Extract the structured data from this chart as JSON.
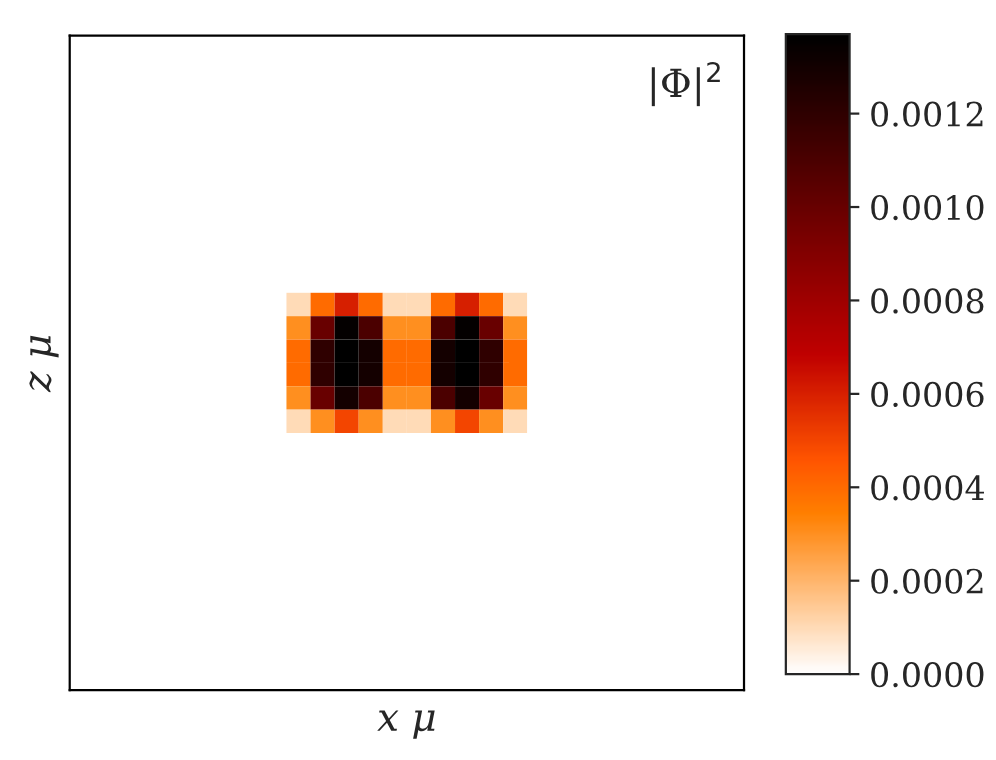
{
  "chart_data": {
    "type": "heatmap",
    "xlabel": "x μ",
    "ylabel": "z μ",
    "clim": [
      0,
      0.00137
    ],
    "cticks": [
      {
        "value": 0,
        "label": "0.0000"
      },
      {
        "value": 0.0002,
        "label": "0.0002"
      },
      {
        "value": 0.0004,
        "label": "0.0004"
      },
      {
        "value": 0.0006,
        "label": "0.0006"
      },
      {
        "value": 0.0008,
        "label": "0.0008"
      },
      {
        "value": 0.001,
        "label": "0.0010"
      },
      {
        "value": 0.0012,
        "label": "0.0012"
      }
    ],
    "annotations": [
      "|Φ|$^{2}$"
    ],
    "tick_labels": false,
    "categories": [
      null,
      null,
      null,
      null,
      null,
      null,
      null,
      null,
      null,
      null,
      null,
      null,
      null,
      null,
      null,
      null,
      null,
      null,
      null,
      null,
      null,
      null,
      null,
      null,
      null,
      null,
      null,
      null
    ],
    "y_categories": [
      null,
      null,
      null,
      null,
      null,
      null,
      null,
      null,
      null,
      null,
      null,
      null,
      null,
      null,
      null,
      null,
      null,
      null,
      null,
      null,
      null,
      null,
      null,
      null,
      null,
      null,
      null,
      null
    ],
    "cells": [
      [
        0,
        0,
        0,
        0,
        0,
        0,
        0,
        0,
        0,
        0,
        0,
        0,
        0,
        0,
        0,
        0,
        0,
        0,
        0,
        0,
        0,
        0,
        0,
        0,
        0,
        0,
        0,
        0
      ],
      [
        0,
        0,
        0,
        0,
        0,
        0,
        0,
        0,
        0,
        0,
        0,
        0,
        0,
        0,
        0,
        0,
        0,
        0,
        0,
        0,
        0,
        0,
        0,
        0,
        0,
        0,
        0,
        0
      ],
      [
        0,
        0,
        0,
        0,
        0,
        0,
        0,
        0,
        0,
        0,
        0,
        0,
        0,
        0,
        0,
        0,
        0,
        0,
        0,
        0,
        0,
        0,
        0,
        0,
        0,
        0,
        0,
        0
      ],
      [
        0,
        0,
        0,
        0,
        0,
        0,
        0,
        0,
        0,
        0,
        0,
        0,
        0,
        0,
        0,
        0,
        0,
        0,
        0,
        0,
        0,
        0,
        0,
        0,
        0,
        0,
        0,
        0
      ],
      [
        0,
        0,
        0,
        0,
        0,
        0,
        0,
        0,
        0,
        0,
        0,
        0,
        0,
        0,
        0,
        0,
        0,
        0,
        0,
        0,
        0,
        0,
        0,
        0,
        0,
        0,
        0,
        0
      ],
      [
        0,
        0,
        0,
        0,
        0,
        0,
        0,
        0,
        0,
        0,
        0,
        0,
        0,
        0,
        0,
        0,
        0,
        0,
        0,
        0,
        0,
        0,
        0,
        0,
        0,
        0,
        0,
        0
      ],
      [
        0,
        0,
        0,
        0,
        0,
        0,
        0,
        0,
        0,
        0,
        0,
        0,
        0,
        0,
        0,
        0,
        0,
        0,
        0,
        0,
        0,
        0,
        0,
        0,
        0,
        0,
        0,
        0
      ],
      [
        0,
        0,
        0,
        0,
        0,
        0,
        0,
        0,
        0,
        0,
        0,
        0,
        0,
        0,
        0,
        0,
        0,
        0,
        0,
        0,
        0,
        0,
        0,
        0,
        0,
        0,
        0,
        0
      ],
      [
        0,
        0,
        0,
        0,
        0,
        0,
        0,
        0,
        0,
        0,
        0,
        0,
        0,
        0,
        0,
        0,
        0,
        0,
        0,
        0,
        0,
        0,
        0,
        0,
        0,
        0,
        0,
        0
      ],
      [
        0,
        0,
        0,
        0,
        0,
        0,
        0,
        0,
        0,
        0,
        0,
        0,
        0,
        0,
        0,
        0,
        0,
        0,
        0,
        0,
        0,
        0,
        0,
        0,
        0,
        0,
        0,
        0
      ],
      [
        0,
        0,
        0,
        0,
        0,
        0,
        0,
        0,
        0,
        0,
        0,
        0,
        0,
        0,
        0,
        0,
        0,
        0,
        0,
        0,
        0,
        0,
        0,
        0,
        0,
        0,
        0,
        0
      ],
      [
        0,
        0,
        0,
        0,
        0,
        0,
        0,
        0,
        0,
        0.0001,
        0.0004,
        0.0006,
        0.0004,
        0.0001,
        0.0001,
        0.0004,
        0.0006,
        0.0004,
        0.0001,
        0,
        0,
        0,
        0,
        0,
        0,
        0,
        0,
        0
      ],
      [
        0,
        0,
        0,
        0,
        0,
        0,
        0,
        0,
        0,
        0.0003,
        0.001,
        0.00135,
        0.0011,
        0.0003,
        0.0003,
        0.0011,
        0.00135,
        0.001,
        0.0003,
        0,
        0,
        0,
        0,
        0,
        0,
        0,
        0,
        0
      ],
      [
        0,
        0,
        0,
        0,
        0,
        0,
        0,
        0,
        0,
        0.0004,
        0.0012,
        0.00137,
        0.0013,
        0.0004,
        0.0004,
        0.0013,
        0.00137,
        0.0012,
        0.0004,
        0,
        0,
        0,
        0,
        0,
        0,
        0,
        0,
        0
      ],
      [
        0,
        0,
        0,
        0,
        0,
        0,
        0,
        0,
        0,
        0.0004,
        0.0012,
        0.00137,
        0.0013,
        0.0004,
        0.0004,
        0.0013,
        0.00137,
        0.0012,
        0.0004,
        0,
        0,
        0,
        0,
        0,
        0,
        0,
        0,
        0
      ],
      [
        0,
        0,
        0,
        0,
        0,
        0,
        0,
        0,
        0,
        0.0003,
        0.001,
        0.0013,
        0.0011,
        0.0003,
        0.0003,
        0.0011,
        0.0013,
        0.001,
        0.0003,
        0,
        0,
        0,
        0,
        0,
        0,
        0,
        0,
        0
      ],
      [
        0,
        0,
        0,
        0,
        0,
        0,
        0,
        0,
        0,
        0.0001,
        0.0003,
        0.0005,
        0.0003,
        0.0001,
        0.0001,
        0.0003,
        0.0005,
        0.0003,
        0.0001,
        0,
        0,
        0,
        0,
        0,
        0,
        0,
        0,
        0
      ],
      [
        0,
        0,
        0,
        0,
        0,
        0,
        0,
        0,
        0,
        0,
        0,
        0,
        0,
        0,
        0,
        0,
        0,
        0,
        0,
        0,
        0,
        0,
        0,
        0,
        0,
        0,
        0,
        0
      ],
      [
        0,
        0,
        0,
        0,
        0,
        0,
        0,
        0,
        0,
        0,
        0,
        0,
        0,
        0,
        0,
        0,
        0,
        0,
        0,
        0,
        0,
        0,
        0,
        0,
        0,
        0,
        0,
        0
      ],
      [
        0,
        0,
        0,
        0,
        0,
        0,
        0,
        0,
        0,
        0,
        0,
        0,
        0,
        0,
        0,
        0,
        0,
        0,
        0,
        0,
        0,
        0,
        0,
        0,
        0,
        0,
        0,
        0
      ],
      [
        0,
        0,
        0,
        0,
        0,
        0,
        0,
        0,
        0,
        0,
        0,
        0,
        0,
        0,
        0,
        0,
        0,
        0,
        0,
        0,
        0,
        0,
        0,
        0,
        0,
        0,
        0,
        0
      ],
      [
        0,
        0,
        0,
        0,
        0,
        0,
        0,
        0,
        0,
        0,
        0,
        0,
        0,
        0,
        0,
        0,
        0,
        0,
        0,
        0,
        0,
        0,
        0,
        0,
        0,
        0,
        0,
        0
      ],
      [
        0,
        0,
        0,
        0,
        0,
        0,
        0,
        0,
        0,
        0,
        0,
        0,
        0,
        0,
        0,
        0,
        0,
        0,
        0,
        0,
        0,
        0,
        0,
        0,
        0,
        0,
        0,
        0
      ],
      [
        0,
        0,
        0,
        0,
        0,
        0,
        0,
        0,
        0,
        0,
        0,
        0,
        0,
        0,
        0,
        0,
        0,
        0,
        0,
        0,
        0,
        0,
        0,
        0,
        0,
        0,
        0,
        0
      ],
      [
        0,
        0,
        0,
        0,
        0,
        0,
        0,
        0,
        0,
        0,
        0,
        0,
        0,
        0,
        0,
        0,
        0,
        0,
        0,
        0,
        0,
        0,
        0,
        0,
        0,
        0,
        0,
        0
      ],
      [
        0,
        0,
        0,
        0,
        0,
        0,
        0,
        0,
        0,
        0,
        0,
        0,
        0,
        0,
        0,
        0,
        0,
        0,
        0,
        0,
        0,
        0,
        0,
        0,
        0,
        0,
        0,
        0
      ],
      [
        0,
        0,
        0,
        0,
        0,
        0,
        0,
        0,
        0,
        0,
        0,
        0,
        0,
        0,
        0,
        0,
        0,
        0,
        0,
        0,
        0,
        0,
        0,
        0,
        0,
        0,
        0,
        0
      ],
      [
        0,
        0,
        0,
        0,
        0,
        0,
        0,
        0,
        0,
        0,
        0,
        0,
        0,
        0,
        0,
        0,
        0,
        0,
        0,
        0,
        0,
        0,
        0,
        0,
        0,
        0,
        0,
        0
      ]
    ]
  }
}
